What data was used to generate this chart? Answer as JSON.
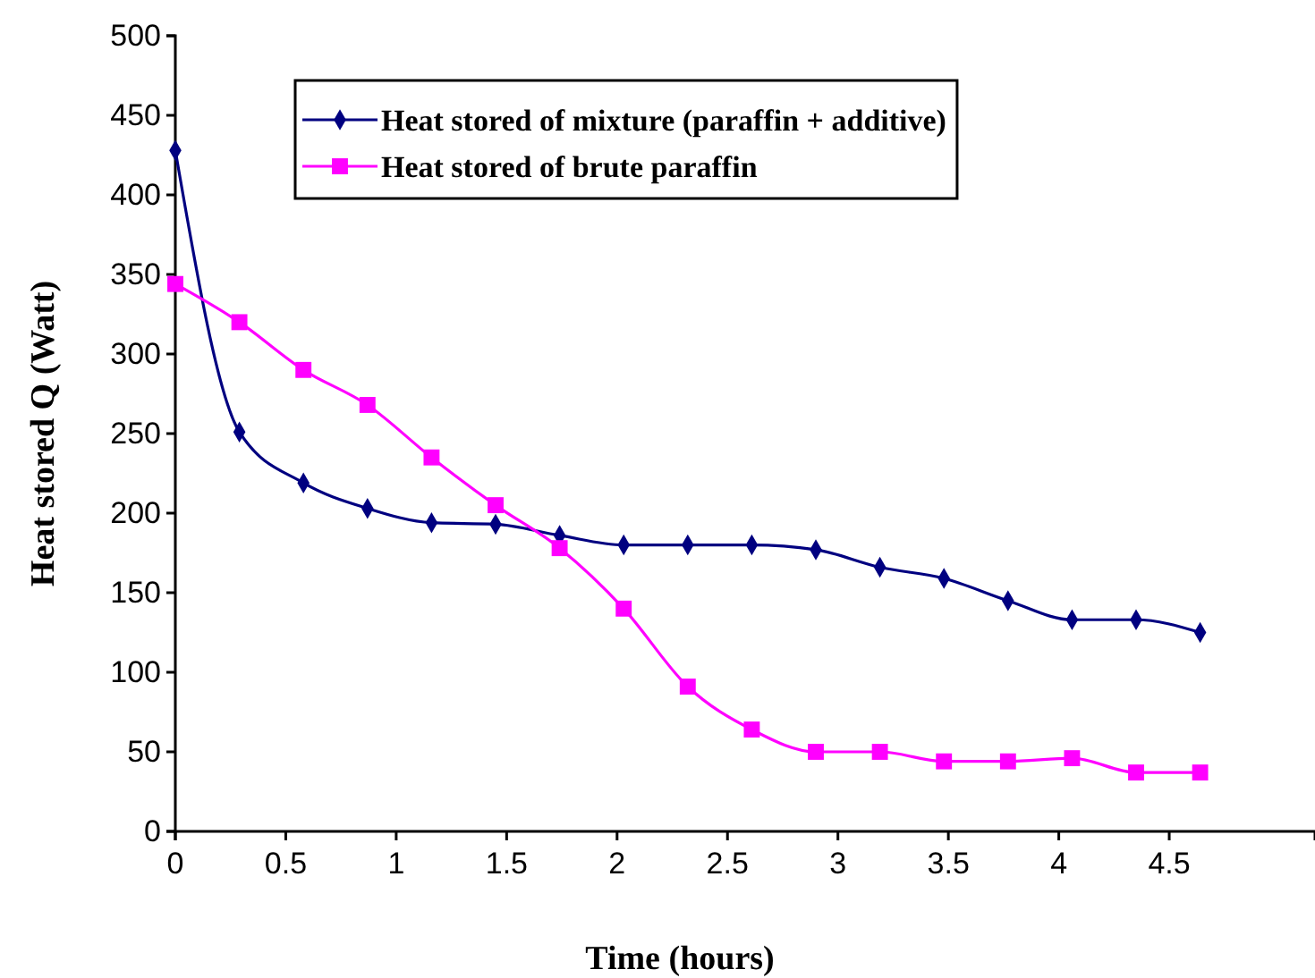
{
  "chart_data": {
    "type": "line",
    "xlabel": "Time (hours)",
    "ylabel": "Heat stored Q (Watt)",
    "x": [
      0,
      0.29,
      0.58,
      0.87,
      1.16,
      1.45,
      1.74,
      2.03,
      2.32,
      2.61,
      2.9,
      3.19,
      3.48,
      3.77,
      4.06,
      4.35,
      4.64
    ],
    "xlim": [
      0,
      5.16
    ],
    "xticks": [
      0,
      0.5,
      1,
      1.5,
      2,
      2.5,
      3,
      3.5,
      4,
      4.5
    ],
    "ylim": [
      0,
      500
    ],
    "yticks": [
      0,
      50,
      100,
      150,
      200,
      250,
      300,
      350,
      400,
      450,
      500
    ],
    "grid": false,
    "legend": "top",
    "line_style": "solid",
    "series": [
      {
        "name": "Heat stored of mixture (paraffin + additive)",
        "color": "#000080",
        "marker": "diamond",
        "values": [
          428,
          251,
          219,
          203,
          194,
          193,
          186,
          180,
          180,
          180,
          177,
          166,
          159,
          145,
          133,
          133,
          125
        ]
      },
      {
        "name": "Heat stored of brute paraffin",
        "color": "#ff00ff",
        "marker": "square",
        "values": [
          344,
          320,
          290,
          268,
          235,
          205,
          178,
          140,
          91,
          64,
          50,
          50,
          44,
          44,
          46,
          37,
          37
        ]
      }
    ]
  }
}
